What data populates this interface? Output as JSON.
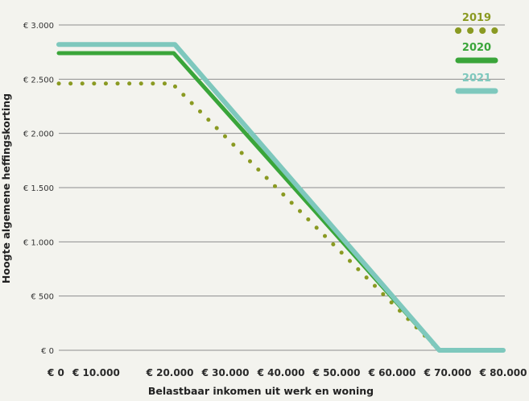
{
  "chart_data": {
    "type": "line",
    "title": "",
    "xlabel": "Belastbaar inkomen uit werk en woning",
    "ylabel": "Hoogte algemene heffingskorting",
    "xlim": [
      0,
      80000
    ],
    "ylim": [
      0,
      3000
    ],
    "x_ticks": [
      0,
      10000,
      20000,
      30000,
      40000,
      50000,
      60000,
      70000,
      80000
    ],
    "x_tick_labels": [
      "€ 0",
      "€ 10.000",
      "€ 20.000",
      "€ 30.000",
      "€ 40.000",
      "€ 50.000",
      "€ 60.000",
      "€ 70.000",
      "€ 80.000"
    ],
    "y_ticks": [
      0,
      500,
      1000,
      1500,
      2000,
      2500,
      3000
    ],
    "y_tick_labels": [
      "€ 0",
      "€ 500",
      "€ 1.000",
      "€ 1.500",
      "€ 2.000",
      "€ 2.500",
      "€ 3.000"
    ],
    "grid": true,
    "legend_position": "top-right",
    "series": [
      {
        "name": "2019",
        "style": "dotted",
        "color": "#8a9a22",
        "points": [
          [
            0,
            2460
          ],
          [
            20400,
            2460
          ],
          [
            68500,
            0
          ],
          [
            80000,
            0
          ]
        ]
      },
      {
        "name": "2020",
        "style": "solid",
        "color": "#3aa53a",
        "points": [
          [
            0,
            2740
          ],
          [
            20700,
            2740
          ],
          [
            68500,
            0
          ],
          [
            80000,
            0
          ]
        ]
      },
      {
        "name": "2021",
        "style": "solid",
        "color": "#7ec8bd",
        "points": [
          [
            0,
            2820
          ],
          [
            20900,
            2820
          ],
          [
            68500,
            0
          ],
          [
            80000,
            0
          ]
        ]
      }
    ]
  }
}
